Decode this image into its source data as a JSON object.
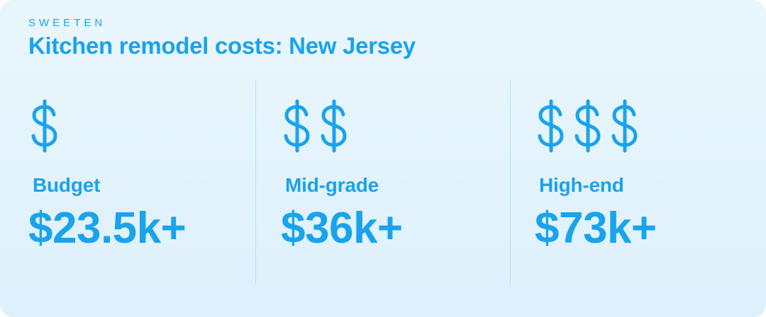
{
  "brand": "SWEETEN",
  "title": "Kitchen remodel costs: New Jersey",
  "accent_color": "#1aa3ec",
  "tiers": [
    {
      "icon": "dollar-sign-icon",
      "sign_count": 1,
      "label": "Budget",
      "price": "$23.5k+"
    },
    {
      "icon": "dollar-sign-icon",
      "sign_count": 2,
      "label": "Mid-grade",
      "price": "$36k+"
    },
    {
      "icon": "dollar-sign-icon",
      "sign_count": 3,
      "label": "High-end",
      "price": "$73k+"
    }
  ]
}
